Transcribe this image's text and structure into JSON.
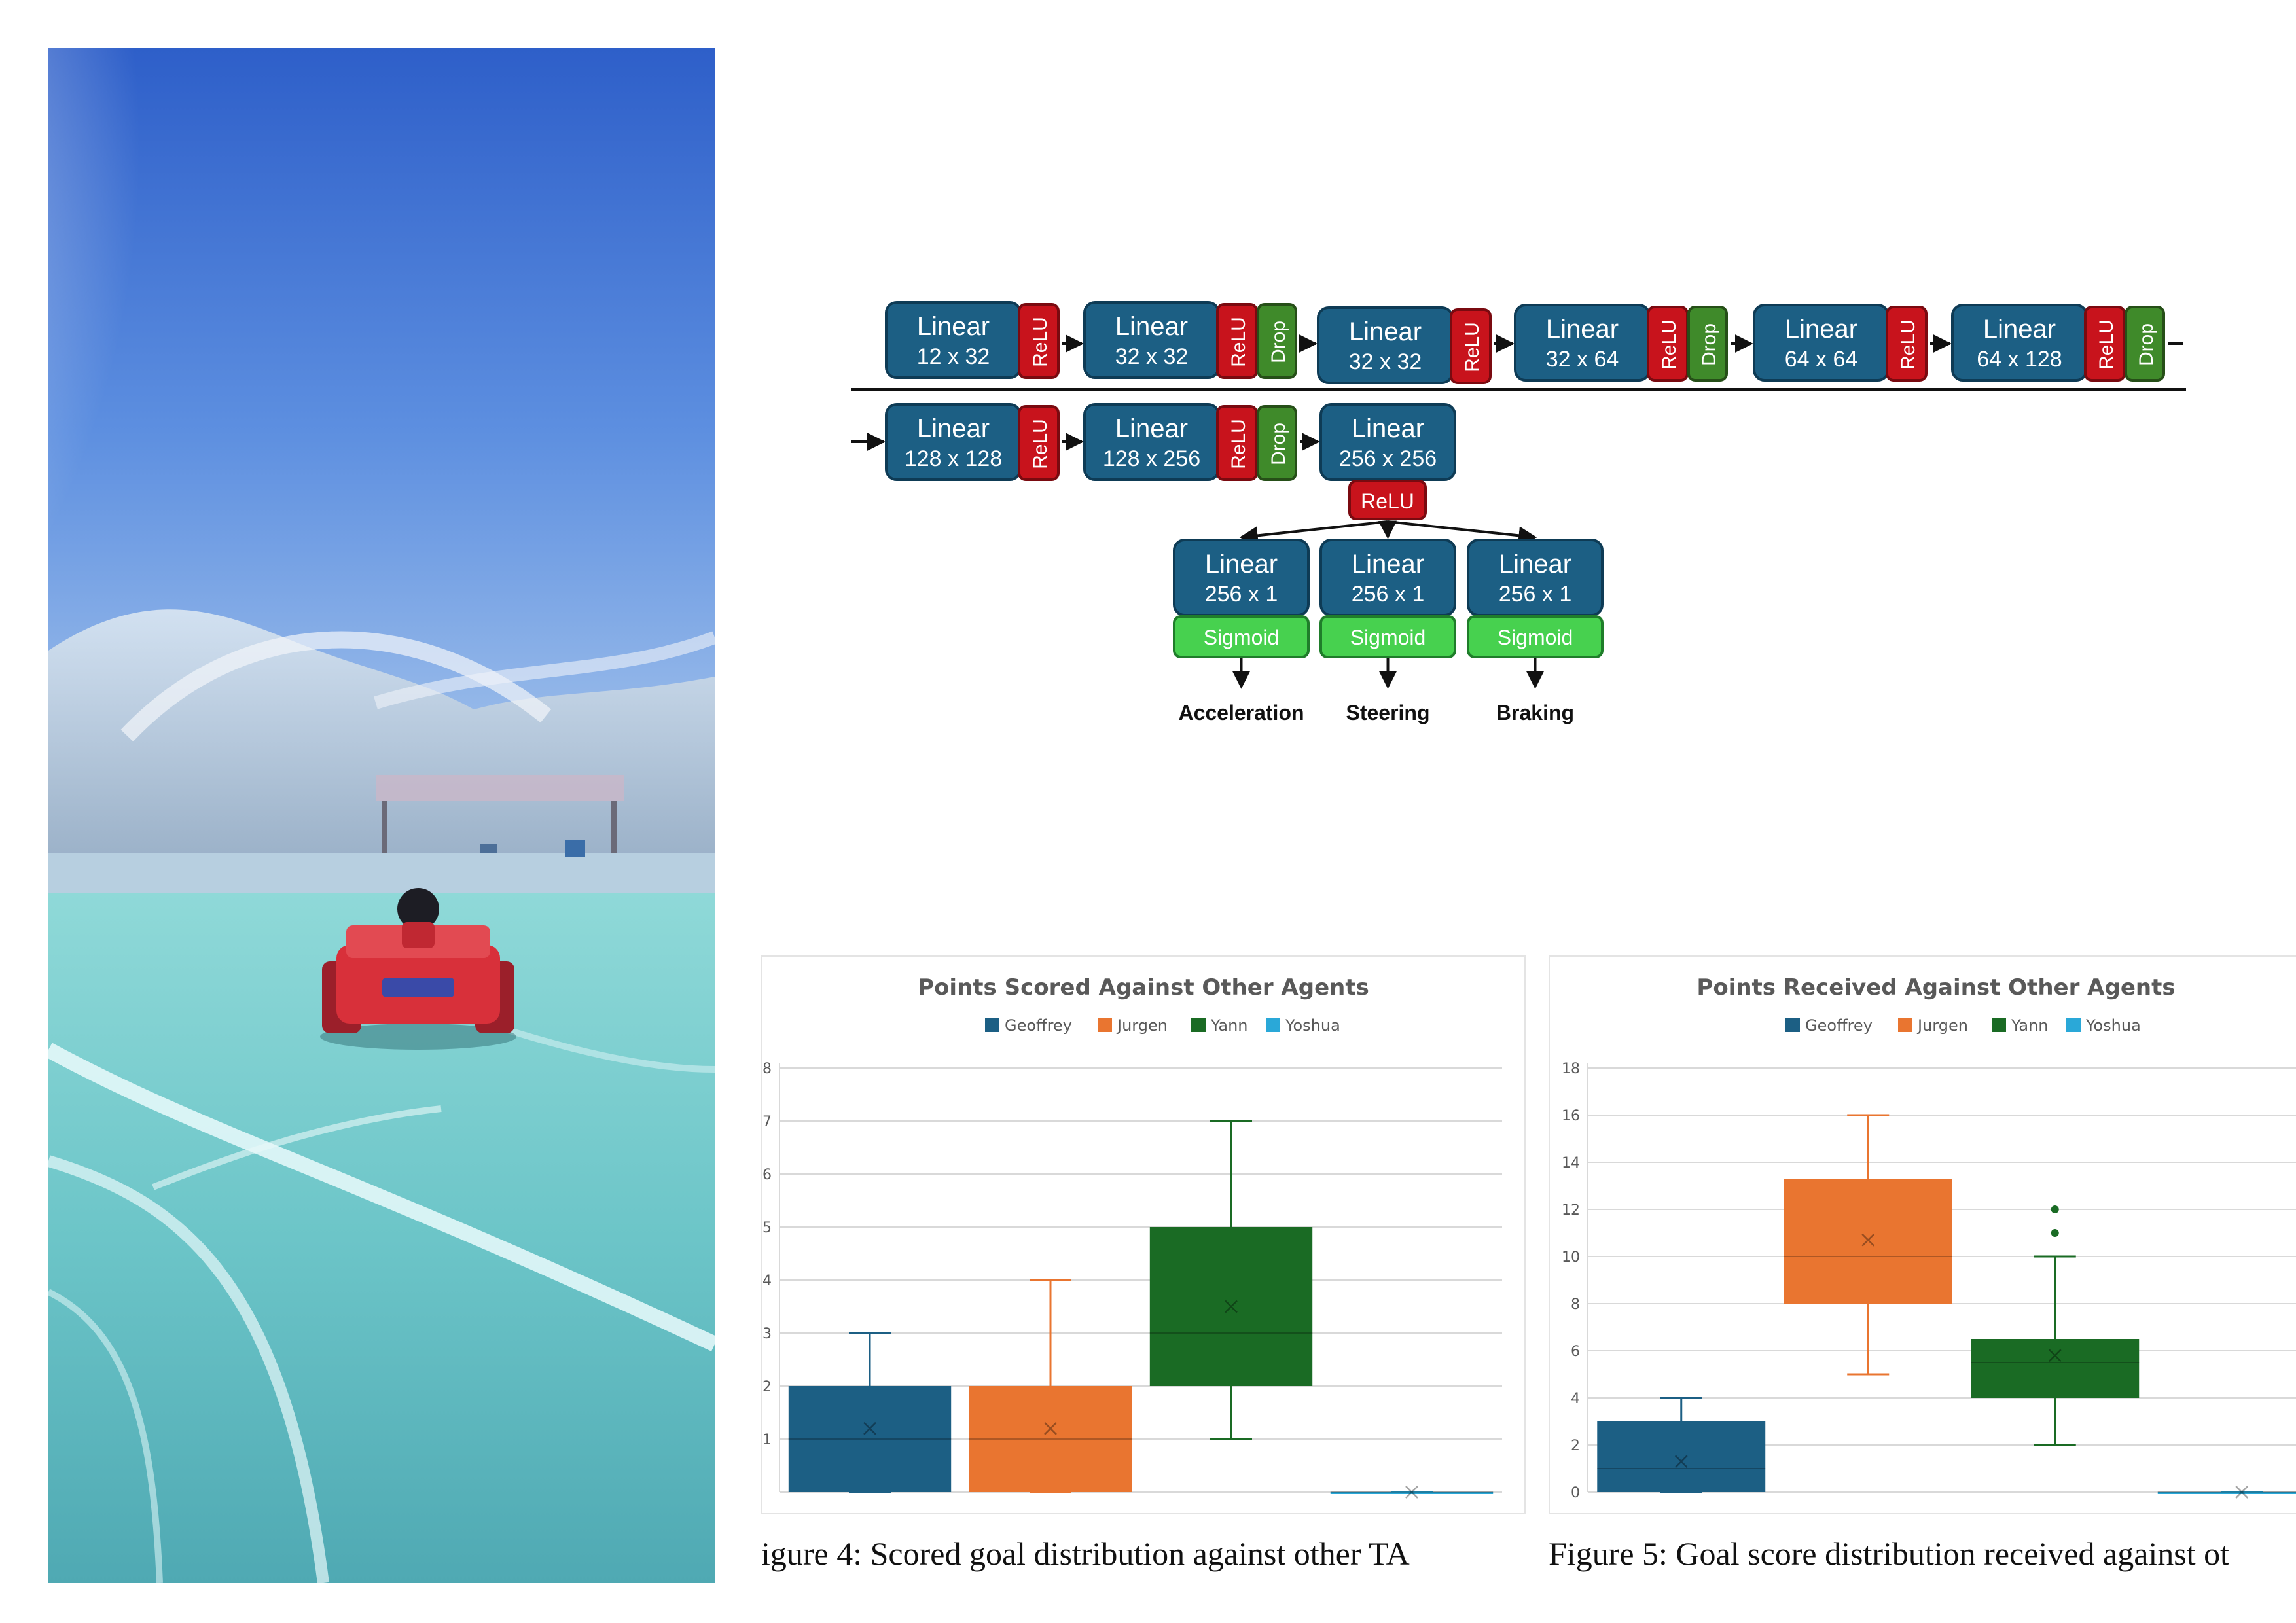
{
  "diagram": {
    "row1": [
      {
        "name": "Linear",
        "dims": "12 x 32",
        "act": "ReLU",
        "drop": false
      },
      {
        "name": "Linear",
        "dims": "32 x 32",
        "act": "ReLU",
        "drop": true
      },
      {
        "name": "Linear",
        "dims": "32 x 32",
        "act": "ReLU",
        "drop": false
      },
      {
        "name": "Linear",
        "dims": "32 x 64",
        "act": "ReLU",
        "drop": true
      },
      {
        "name": "Linear",
        "dims": "64 x 64",
        "act": "ReLU",
        "drop": false
      },
      {
        "name": "Linear",
        "dims": "64 x 128",
        "act": "ReLU",
        "drop": true
      }
    ],
    "row2": [
      {
        "name": "Linear",
        "dims": "128 x 128",
        "act": "ReLU",
        "drop": false
      },
      {
        "name": "Linear",
        "dims": "128 x 256",
        "act": "ReLU",
        "drop": true
      },
      {
        "name": "Linear",
        "dims": "256 x 256",
        "act": "",
        "drop": false
      }
    ],
    "relu_label": "ReLU",
    "drop_label": "Drop",
    "heads": [
      {
        "name": "Linear",
        "dims": "256 x 1",
        "act": "Sigmoid",
        "output": "Acceleration"
      },
      {
        "name": "Linear",
        "dims": "256 x 1",
        "act": "Sigmoid",
        "output": "Steering"
      },
      {
        "name": "Linear",
        "dims": "256 x 1",
        "act": "Sigmoid",
        "output": "Braking"
      }
    ],
    "colors": {
      "linear": "#1c5f84",
      "relu": "#c8131c",
      "drop": "#3f8a2a",
      "sigmoid": "#47d14f"
    }
  },
  "chart_data": [
    {
      "type": "box",
      "title": "Points Scored Against Other Agents",
      "legend": [
        "Geoffrey",
        "Jurgen",
        "Yann",
        "Yoshua"
      ],
      "legend_placement": "top",
      "ylim": [
        0,
        8
      ],
      "yticks": [
        "",
        "1",
        "2",
        "3",
        "4",
        "5",
        "6",
        "7",
        "8"
      ],
      "grid": true,
      "series": [
        {
          "name": "Geoffrey",
          "color": "#1c5f84",
          "min": 0,
          "q1": 0,
          "median": 1,
          "q3": 2,
          "max": 3,
          "mean": 1.2,
          "outliers": []
        },
        {
          "name": "Jurgen",
          "color": "#e97530",
          "min": 0,
          "q1": 0,
          "median": 1,
          "q3": 2,
          "max": 4,
          "mean": 1.2,
          "outliers": []
        },
        {
          "name": "Yann",
          "color": "#1a6b24",
          "min": 1,
          "q1": 2,
          "median": 3,
          "q3": 5,
          "max": 7,
          "mean": 3.5,
          "outliers": []
        },
        {
          "name": "Yoshua",
          "color": "#2aa8d8",
          "min": 0,
          "q1": 0,
          "median": 0,
          "q3": 0,
          "max": 0,
          "mean": 0,
          "outliers": []
        }
      ]
    },
    {
      "type": "box",
      "title": "Points Received Against Other Agents",
      "legend": [
        "Geoffrey",
        "Jurgen",
        "Yann",
        "Yoshua"
      ],
      "legend_placement": "top",
      "ylim": [
        0,
        18
      ],
      "yticks": [
        "0",
        "2",
        "4",
        "6",
        "8",
        "10",
        "12",
        "14",
        "16",
        "18"
      ],
      "grid": true,
      "series": [
        {
          "name": "Geoffrey",
          "color": "#1c5f84",
          "min": 0,
          "q1": 0,
          "median": 1,
          "q3": 3,
          "max": 4,
          "mean": 1.3,
          "outliers": []
        },
        {
          "name": "Jurgen",
          "color": "#e97530",
          "min": 5,
          "q1": 8,
          "median": 10,
          "q3": 13.3,
          "max": 16,
          "mean": 10.7,
          "outliers": []
        },
        {
          "name": "Yann",
          "color": "#1a6b24",
          "min": 2,
          "q1": 4,
          "median": 5.5,
          "q3": 6.5,
          "max": 10,
          "mean": 5.8,
          "outliers": [
            11,
            12
          ]
        },
        {
          "name": "Yoshua",
          "color": "#2aa8d8",
          "min": 0,
          "q1": 0,
          "median": 0,
          "q3": 0,
          "max": 0,
          "mean": 0,
          "outliers": []
        }
      ]
    }
  ],
  "captions": {
    "fig4": "igure 4:  Scored goal distribution against other TA",
    "fig5": "Figure 5: Goal score distribution received against ot"
  }
}
